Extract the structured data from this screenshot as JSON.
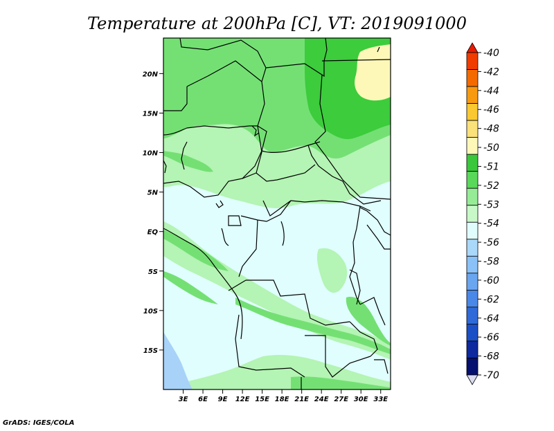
{
  "title": "Temperature at 200hPa [C], VT: 2019091000",
  "credit": "GrADS: IGES/COLA",
  "lat_labels": [
    "20N",
    "15N",
    "10N",
    "5N",
    "EQ",
    "5S",
    "10S",
    "15S"
  ],
  "lon_labels": [
    "3E",
    "6E",
    "9E",
    "12E",
    "15E",
    "18E",
    "21E",
    "24E",
    "27E",
    "30E",
    "33E"
  ],
  "map": {
    "lon_range": [
      0,
      34.5
    ],
    "lat_range": [
      -20,
      24.5
    ],
    "lat_ticks": [
      20,
      15,
      10,
      5,
      0,
      -5,
      -10,
      -15
    ],
    "lon_ticks": [
      3,
      6,
      9,
      12,
      15,
      18,
      21,
      24,
      27,
      30,
      33
    ]
  },
  "colorbar": {
    "labels": [
      "-40",
      "-42",
      "-44",
      "-46",
      "-48",
      "-50",
      "-51",
      "-52",
      "-53",
      "-54",
      "-56",
      "-58",
      "-60",
      "-62",
      "-64",
      "-66",
      "-68",
      "-70"
    ],
    "colors": [
      "#e81c00",
      "#f03c00",
      "#f46a00",
      "#f89a10",
      "#fac830",
      "#fbe17a",
      "#fdf7b8",
      "#3bc73b",
      "#5ad85a",
      "#96ec96",
      "#c8f8c8",
      "#e0fcfc",
      "#aad8fa",
      "#8ac2f7",
      "#6aa6f0",
      "#4a88e8",
      "#2f6ad8",
      "#1b4fc6",
      "#0e2a9e",
      "#06106e",
      "#dcdcf0"
    ]
  },
  "colors": {
    "cold_54": "#e0fefe",
    "band_53": "#b4f4b4",
    "band_52": "#74e074",
    "band_51": "#3ccc3c",
    "warm_50": "#fdf8b8",
    "blue_56": "#a8d2f8"
  }
}
